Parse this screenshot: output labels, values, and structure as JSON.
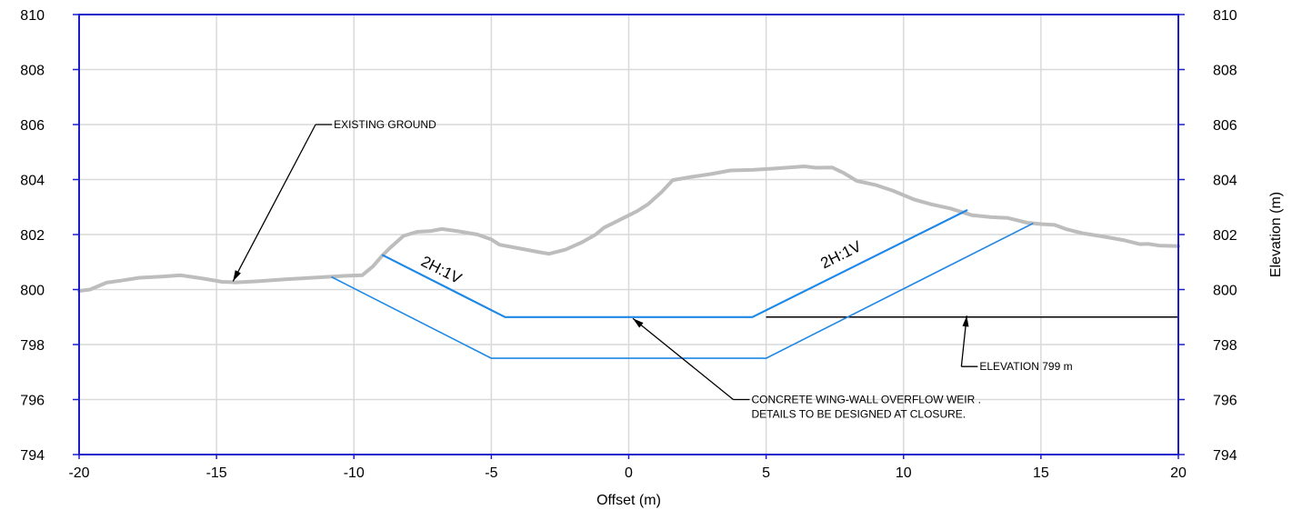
{
  "chart_data": {
    "type": "line",
    "xlabel": "Offset (m)",
    "ylabel": "Elevation (m)",
    "xlim": [
      -20,
      20
    ],
    "ylim": [
      794,
      810
    ],
    "x_ticks": [
      -20,
      -15,
      -10,
      -5,
      0,
      5,
      10,
      15,
      20
    ],
    "y_ticks": [
      794,
      796,
      798,
      800,
      802,
      804,
      806,
      808,
      810
    ],
    "grid": true,
    "colors": {
      "existing_ground": "#bdbdbd",
      "design": "#1f88e5",
      "grid": "#d9d9d9",
      "frame": "#1c1ccc",
      "annotation": "#000000"
    },
    "series": [
      {
        "key": "existing_ground",
        "points": [
          [
            -20,
            799.95
          ],
          [
            -19.6,
            800.0
          ],
          [
            -19.0,
            800.25
          ],
          [
            -18.5,
            800.32
          ],
          [
            -17.8,
            800.43
          ],
          [
            -17.0,
            800.47
          ],
          [
            -16.3,
            800.52
          ],
          [
            -15.5,
            800.4
          ],
          [
            -14.8,
            800.28
          ],
          [
            -14.3,
            800.26
          ],
          [
            -13.5,
            800.3
          ],
          [
            -12.5,
            800.37
          ],
          [
            -11.5,
            800.43
          ],
          [
            -10.8,
            800.47
          ],
          [
            -10.3,
            800.5
          ],
          [
            -9.7,
            800.52
          ],
          [
            -9.3,
            800.85
          ],
          [
            -9.0,
            801.2
          ],
          [
            -8.7,
            801.5
          ],
          [
            -8.2,
            801.95
          ],
          [
            -7.7,
            802.1
          ],
          [
            -7.2,
            802.13
          ],
          [
            -6.8,
            802.2
          ],
          [
            -6.2,
            802.12
          ],
          [
            -5.5,
            802.0
          ],
          [
            -5.0,
            801.82
          ],
          [
            -4.7,
            801.63
          ],
          [
            -4.0,
            801.5
          ],
          [
            -3.3,
            801.37
          ],
          [
            -2.9,
            801.3
          ],
          [
            -2.3,
            801.45
          ],
          [
            -1.7,
            801.72
          ],
          [
            -1.2,
            802.0
          ],
          [
            -0.9,
            802.25
          ],
          [
            -0.3,
            802.55
          ],
          [
            0.3,
            802.85
          ],
          [
            0.7,
            803.1
          ],
          [
            1.2,
            803.55
          ],
          [
            1.6,
            803.98
          ],
          [
            2.3,
            804.1
          ],
          [
            3.0,
            804.2
          ],
          [
            3.7,
            804.33
          ],
          [
            4.5,
            804.35
          ],
          [
            5.3,
            804.4
          ],
          [
            6.0,
            804.45
          ],
          [
            6.4,
            804.48
          ],
          [
            6.8,
            804.43
          ],
          [
            7.4,
            804.44
          ],
          [
            7.8,
            804.25
          ],
          [
            8.3,
            803.95
          ],
          [
            9.0,
            803.8
          ],
          [
            9.6,
            803.6
          ],
          [
            10.4,
            803.27
          ],
          [
            11.0,
            803.1
          ],
          [
            11.7,
            802.95
          ],
          [
            12.5,
            802.7
          ],
          [
            13.2,
            802.63
          ],
          [
            13.8,
            802.6
          ],
          [
            14.5,
            802.43
          ],
          [
            15.0,
            802.38
          ],
          [
            15.5,
            802.35
          ],
          [
            15.9,
            802.2
          ],
          [
            16.5,
            802.05
          ],
          [
            17.3,
            801.92
          ],
          [
            18.0,
            801.8
          ],
          [
            18.6,
            801.65
          ],
          [
            18.9,
            801.66
          ],
          [
            19.3,
            801.6
          ],
          [
            20.0,
            801.58
          ]
        ]
      },
      {
        "key": "design_inner",
        "points": [
          [
            -8.95,
            801.25
          ],
          [
            -4.5,
            799.0
          ],
          [
            4.5,
            799.0
          ],
          [
            12.3,
            802.88
          ]
        ]
      },
      {
        "key": "design_outer",
        "points": [
          [
            -10.8,
            800.45
          ],
          [
            -5.0,
            797.5
          ],
          [
            5.0,
            797.5
          ],
          [
            14.7,
            802.4
          ]
        ]
      }
    ],
    "reference_line": {
      "y": 799,
      "x_start": 5,
      "x_end": 20
    },
    "annotations": [
      {
        "key": "existing_ground",
        "lines": [
          "EXISTING GROUND"
        ],
        "text_at": [
          -10.8,
          806.0
        ],
        "points_to": [
          -14.4,
          800.3
        ]
      },
      {
        "key": "weir",
        "lines": [
          "CONCRETE WING-WALL OVERFLOW WEIR .",
          "DETAILS TO BE DESIGNED AT CLOSURE."
        ],
        "text_at": [
          4.4,
          796.0
        ],
        "points_to": [
          0.15,
          798.95
        ]
      },
      {
        "key": "elevation",
        "lines": [
          "ELEVATION 799 m"
        ],
        "text_at": [
          12.7,
          797.2
        ],
        "points_to": [
          12.3,
          799.05
        ]
      }
    ],
    "slope_labels": [
      {
        "text": "2H:1V",
        "x": -6.9,
        "y": 800.55,
        "angle_from_points": [
          [
            -8.95,
            801.25
          ],
          [
            -4.5,
            799.0
          ]
        ]
      },
      {
        "text": "2H:1V",
        "x": 7.8,
        "y": 801.1,
        "angle_from_points": [
          [
            4.5,
            799.0
          ],
          [
            12.3,
            802.88
          ]
        ]
      }
    ]
  }
}
